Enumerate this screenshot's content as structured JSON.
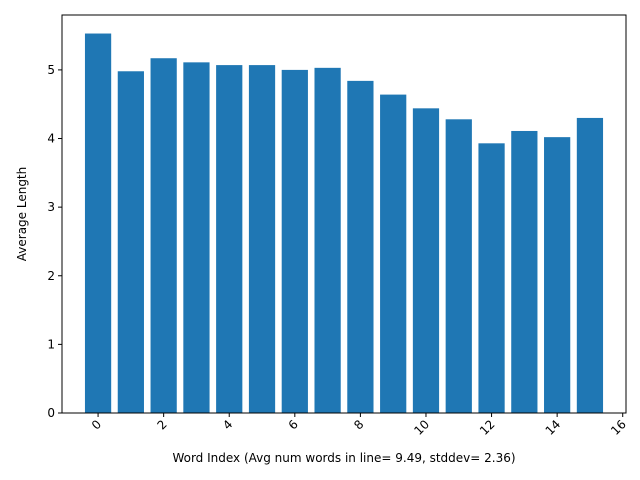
{
  "chart_data": {
    "type": "bar",
    "x": [
      0,
      1,
      2,
      3,
      4,
      5,
      6,
      7,
      8,
      9,
      10,
      11,
      12,
      13,
      14,
      15
    ],
    "values": [
      5.53,
      4.98,
      5.17,
      5.11,
      5.07,
      5.07,
      5.0,
      5.03,
      4.84,
      4.64,
      4.44,
      4.28,
      3.93,
      4.11,
      4.02,
      4.3
    ],
    "xlabel": "Word Index (Avg num words in line= 9.49, stddev= 2.36)",
    "ylabel": "Average Length",
    "xlim": [
      -1.1,
      16.1
    ],
    "ylim": [
      0,
      5.8
    ],
    "xticks": [
      0,
      2,
      4,
      6,
      8,
      10,
      12,
      14,
      16
    ],
    "xtick_labels": [
      "0",
      "2",
      "4",
      "6",
      "8",
      "10",
      "12",
      "14",
      "16"
    ],
    "yticks": [
      0,
      1,
      2,
      3,
      4,
      5
    ],
    "ytick_labels": [
      "0",
      "1",
      "2",
      "3",
      "4",
      "5"
    ],
    "bar_color": "#1f77b4",
    "grid": false,
    "legend": "none"
  }
}
